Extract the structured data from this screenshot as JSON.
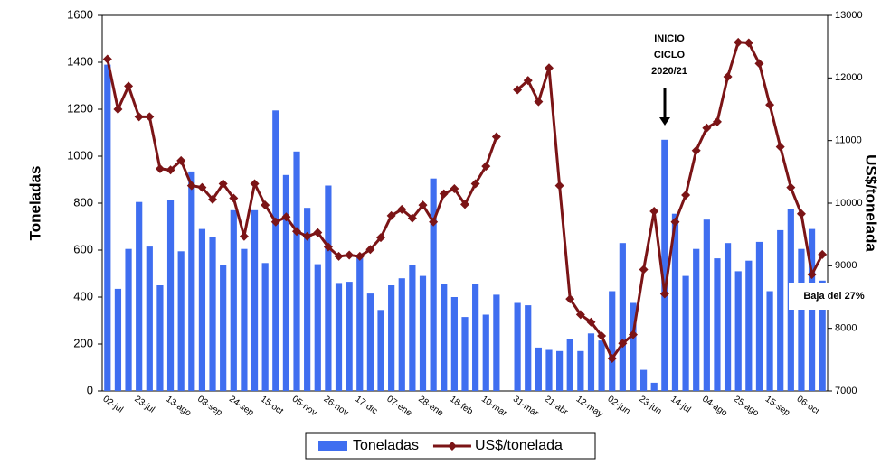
{
  "chart_data": {
    "type": "bar-line",
    "categories": [
      "02-jul",
      null,
      null,
      "23-jul",
      null,
      null,
      "13-ago",
      null,
      null,
      "03-sep",
      null,
      null,
      "24-sep",
      null,
      null,
      "15-oct",
      null,
      null,
      "05-nov",
      null,
      null,
      "26-nov",
      null,
      null,
      "17-dic",
      null,
      null,
      "07-ene",
      null,
      null,
      "28-ene",
      null,
      null,
      "18-feb",
      null,
      null,
      "10-mar",
      null,
      null,
      "31-mar",
      null,
      null,
      "21-abr",
      null,
      null,
      "12-may",
      null,
      null,
      "02-jun",
      null,
      null,
      "23-jun",
      null,
      null,
      "14-jul",
      null,
      null,
      "04-ago",
      null,
      null,
      "25-ago",
      null,
      null,
      "15-sep",
      null,
      null,
      "06-oct",
      null,
      null
    ],
    "series": [
      {
        "name": "Toneladas",
        "type": "bar",
        "color": "#3f6ef0",
        "values": [
          1390,
          435,
          605,
          805,
          615,
          450,
          815,
          595,
          935,
          690,
          655,
          535,
          770,
          605,
          770,
          545,
          1195,
          920,
          1020,
          780,
          540,
          875,
          460,
          465,
          575,
          415,
          345,
          450,
          480,
          535,
          490,
          905,
          455,
          400,
          315,
          455,
          325,
          410,
          null,
          375,
          365,
          185,
          175,
          170,
          220,
          170,
          245,
          215,
          425,
          630,
          375,
          90,
          35,
          1070,
          755,
          490,
          605,
          730,
          565,
          630,
          510,
          555,
          635,
          425,
          685,
          775,
          605,
          690,
          470
        ]
      },
      {
        "name": "US$/tonelada",
        "type": "line",
        "axis": "y2",
        "color": "#7b1416",
        "values": [
          12300,
          11500,
          11870,
          11380,
          11380,
          10550,
          10530,
          10680,
          10280,
          10250,
          10060,
          10310,
          10080,
          9470,
          10310,
          9970,
          9700,
          9780,
          9550,
          9470,
          9530,
          9300,
          9150,
          9170,
          9150,
          9260,
          9450,
          9800,
          9900,
          9760,
          9970,
          9700,
          10150,
          10230,
          9980,
          10310,
          10590,
          11060,
          null,
          11810,
          11960,
          11620,
          12160,
          10280,
          8470,
          8220,
          8100,
          7880,
          7520,
          7760,
          7900,
          8940,
          9870,
          8550,
          9700,
          10130,
          10840,
          11200,
          11300,
          12020,
          12570,
          12560,
          12230,
          11570,
          10900,
          10250,
          9830,
          8860,
          9180
        ]
      }
    ],
    "ylabel": "Toneladas",
    "y2label": "US$/tonelada",
    "ylim": [
      0,
      1600
    ],
    "yticks": [
      0,
      200,
      400,
      600,
      800,
      1000,
      1200,
      1400,
      1600
    ],
    "y2lim": [
      7000,
      13000
    ],
    "y2ticks": [
      7000,
      8000,
      9000,
      10000,
      11000,
      12000,
      13000
    ],
    "annotations": [
      "INICIO",
      "CICLO",
      "2020/21",
      "Baja del 27%"
    ],
    "legend": "bottom"
  }
}
